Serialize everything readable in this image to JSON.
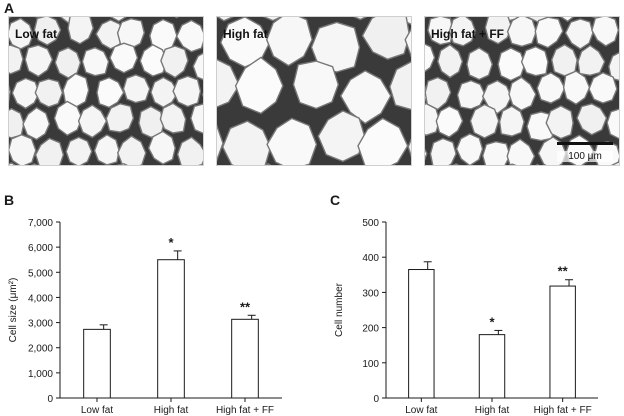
{
  "panels": {
    "A": "A",
    "B": "B",
    "C": "C"
  },
  "micrographs": [
    {
      "label": "Low fat",
      "density": "small"
    },
    {
      "label": "High fat",
      "density": "large"
    },
    {
      "label": "High fat + FF",
      "density": "small",
      "scale_bar_label": "100 μm"
    }
  ],
  "chart_data": [
    {
      "type": "bar",
      "panel": "B",
      "categories": [
        "Low fat",
        "High fat",
        "High fat + FF"
      ],
      "values": [
        2730,
        5500,
        3130
      ],
      "errors": [
        180,
        350,
        160
      ],
      "annotations": [
        "",
        "*",
        "**"
      ],
      "ylabel": "Cell size (μm²)",
      "ylim": [
        0,
        7000
      ],
      "yticks": [
        0,
        1000,
        2000,
        3000,
        4000,
        5000,
        6000,
        7000
      ],
      "ytick_labels": [
        "0",
        "1,000",
        "2,000",
        "3,000",
        "4,000",
        "5,000",
        "6,000",
        "7,000"
      ],
      "bar_color": "#ffffff",
      "edge_color": "#1a1a1a",
      "grid": false
    },
    {
      "type": "bar",
      "panel": "C",
      "categories": [
        "Low fat",
        "High fat",
        "High fat + FF"
      ],
      "values": [
        365,
        180,
        318
      ],
      "errors": [
        22,
        12,
        18
      ],
      "annotations": [
        "",
        "*",
        "**"
      ],
      "ylabel": "Cell number",
      "ylim": [
        0,
        500
      ],
      "yticks": [
        0,
        100,
        200,
        300,
        400,
        500
      ],
      "ytick_labels": [
        "0",
        "100",
        "200",
        "300",
        "400",
        "500"
      ],
      "bar_color": "#ffffff",
      "edge_color": "#1a1a1a",
      "grid": false
    }
  ]
}
